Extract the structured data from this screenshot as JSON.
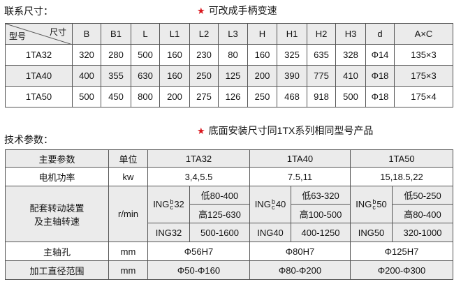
{
  "section1": {
    "title": "联系尺寸：",
    "note": "可改成手柄变速",
    "corner": {
      "top": "尺寸",
      "bottom": "型号"
    },
    "headers": [
      "B",
      "B1",
      "L",
      "L1",
      "L2",
      "L3",
      "H",
      "H1",
      "H2",
      "H3",
      "d",
      "A×C"
    ],
    "rows": [
      {
        "model": "1TA32",
        "values": [
          "320",
          "280",
          "500",
          "160",
          "230",
          "80",
          "160",
          "325",
          "635",
          "328",
          "Φ14",
          "135×3"
        ]
      },
      {
        "model": "1TA40",
        "values": [
          "400",
          "355",
          "630",
          "160",
          "250",
          "125",
          "200",
          "390",
          "775",
          "410",
          "Φ18",
          "175×3"
        ]
      },
      {
        "model": "1TA50",
        "values": [
          "500",
          "450",
          "800",
          "200",
          "275",
          "126",
          "250",
          "468",
          "918",
          "500",
          "Φ18",
          "175×4"
        ]
      }
    ]
  },
  "section2": {
    "title": "技术参数：",
    "note": "底面安装尺寸同1TX系列相同型号产品",
    "headers": [
      "主要参数",
      "单位",
      "1TA32",
      "1TA40",
      "1TA50"
    ],
    "power": {
      "label": "电机功率",
      "unit": "kw",
      "values": [
        "3,4,5.5",
        "7.5,11",
        "15,18.5,22"
      ]
    },
    "speed": {
      "label1": "配套转动装置",
      "label2": "及主轴转速",
      "unit": "r/min",
      "groups": [
        {
          "ing_prefix": "ING",
          "sup": "b",
          "sub": "c",
          "ing_suffix": "32",
          "low": "低80-400",
          "high": "高125-630",
          "ing": "ING32",
          "range": "500-1600"
        },
        {
          "ing_prefix": "ING",
          "sup": "b",
          "sub": "c",
          "ing_suffix": "40",
          "low": "低63-320",
          "high": "高100-500",
          "ing": "ING40",
          "range": "400-1250"
        },
        {
          "ing_prefix": "ING",
          "sup": "b",
          "sub": "c",
          "ing_suffix": "50",
          "low": "低50-250",
          "high": "高80-400",
          "ing": "ING50",
          "range": "320-1000"
        }
      ]
    },
    "spindle": {
      "label": "主轴孔",
      "unit": "mm",
      "values": [
        "Φ56H7",
        "Φ80H7",
        "Φ125H7"
      ]
    },
    "diameter": {
      "label": "加工直径范围",
      "unit": "mm",
      "values": [
        "Φ50-Φ160",
        "Φ80-Φ200",
        "Φ200-Φ300"
      ]
    }
  },
  "colors": {
    "star": "#d9141b",
    "row_shade": "#ebebeb",
    "border": "#555555"
  }
}
